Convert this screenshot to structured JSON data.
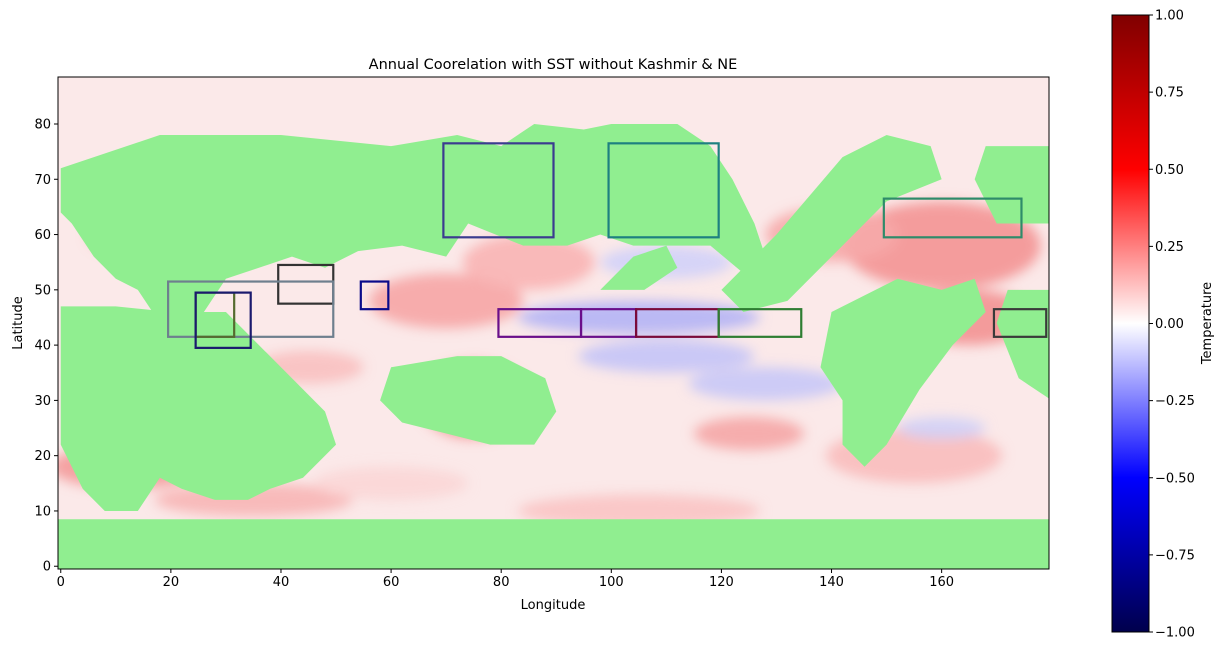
{
  "chart_data": {
    "type": "heatmap",
    "title": "Annual Coorelation with SST without Kashmir & NE",
    "xlabel": "Longitude",
    "ylabel": "Latitude",
    "xlim": [
      -0.5,
      179.5
    ],
    "ylim": [
      -0.5,
      88.5
    ],
    "x_ticks": [
      0,
      20,
      40,
      60,
      80,
      100,
      120,
      140,
      160
    ],
    "y_ticks": [
      0,
      10,
      20,
      30,
      40,
      50,
      60,
      70,
      80
    ],
    "colorbar": {
      "label": "Temperature",
      "colormap": "seismic",
      "vmin": -1.0,
      "vmax": 1.0,
      "ticks": [
        "1.00",
        "0.75",
        "0.50",
        "0.25",
        "0.00",
        "−0.25",
        "−0.50",
        "−0.75",
        "−1.00"
      ],
      "tick_values": [
        1.0,
        0.75,
        0.5,
        0.25,
        0.0,
        -0.25,
        -0.5,
        -0.75,
        -1.0
      ]
    },
    "land_color": "#90ee90",
    "grid": false,
    "regions": [
      {
        "x": [
          70,
          90
        ],
        "y": [
          60,
          77
        ],
        "color": "#3b3b8f"
      },
      {
        "x": [
          100,
          120
        ],
        "y": [
          60,
          77
        ],
        "color": "#1e8080"
      },
      {
        "x": [
          150,
          175
        ],
        "y": [
          60,
          67
        ],
        "color": "#2e8b6a"
      },
      {
        "x": [
          40,
          50
        ],
        "y": [
          48,
          55
        ],
        "color": "#333333"
      },
      {
        "x": [
          55,
          60
        ],
        "y": [
          47,
          52
        ],
        "color": "#0a0a8a"
      },
      {
        "x": [
          20,
          50
        ],
        "y": [
          42,
          52
        ],
        "color": "#6e7f8e"
      },
      {
        "x": [
          25,
          32
        ],
        "y": [
          42,
          50
        ],
        "color": "#556b2f"
      },
      {
        "x": [
          25,
          35
        ],
        "y": [
          40,
          50
        ],
        "color": "#1a1a6e"
      },
      {
        "x": [
          80,
          95
        ],
        "y": [
          42,
          47
        ],
        "color": "#6a0f8a"
      },
      {
        "x": [
          95,
          105
        ],
        "y": [
          42,
          47
        ],
        "color": "#6a0f8a"
      },
      {
        "x": [
          105,
          120
        ],
        "y": [
          42,
          47
        ],
        "color": "#7a0a3a"
      },
      {
        "x": [
          120,
          135
        ],
        "y": [
          42,
          47
        ],
        "color": "#2e7d32"
      },
      {
        "x": [
          170,
          180
        ],
        "y": [
          42,
          47
        ],
        "color": "#3a3a3a"
      }
    ]
  }
}
